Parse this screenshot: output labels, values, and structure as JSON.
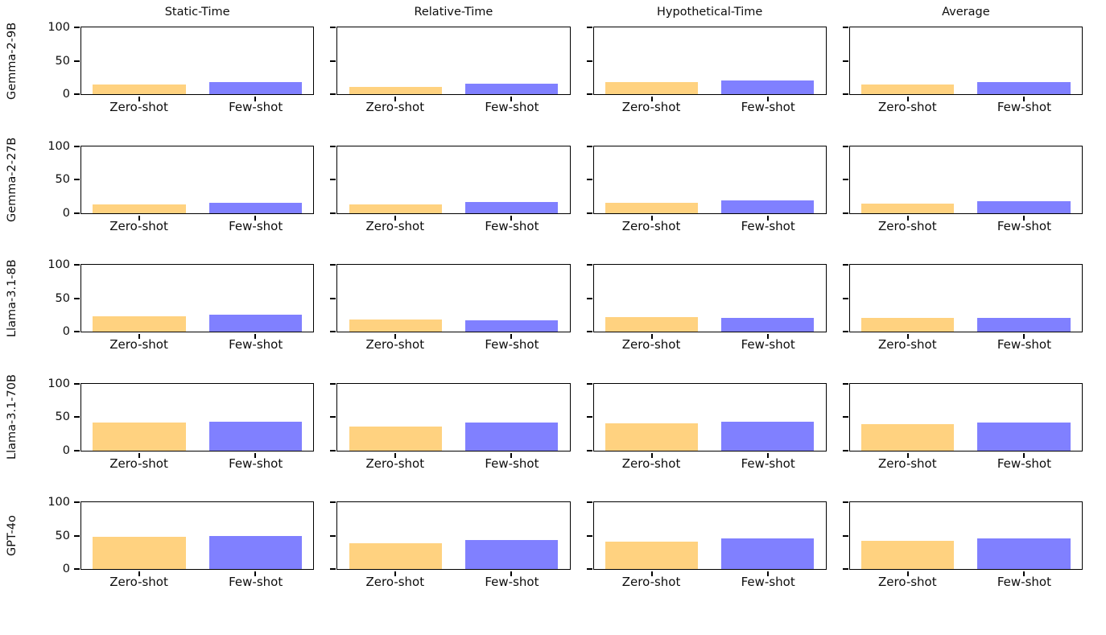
{
  "chart_data": {
    "type": "bar",
    "layout": "grid of 5 model rows x 4 metric columns, two bars per subplot",
    "col_titles": [
      "Static-Time",
      "Relative-Time",
      "Hypothetical-Time",
      "Average"
    ],
    "row_labels": [
      "Gemma-2-9B",
      "Gemma-2-27B",
      "Llama-3.1-8B",
      "Llama-3.1-70B",
      "GPT-4o"
    ],
    "categories": [
      "Zero-shot",
      "Few-shot"
    ],
    "series_colors": [
      "#FFD280",
      "#8080FF"
    ],
    "ylim": [
      0,
      100
    ],
    "yticks": [
      "0",
      "50",
      "100"
    ],
    "grid": false,
    "legend": "none",
    "values": [
      {
        "model": "Gemma-2-9B",
        "cells": [
          [
            15,
            18
          ],
          [
            11,
            16
          ],
          [
            18,
            21
          ],
          [
            15,
            18
          ]
        ]
      },
      {
        "model": "Gemma-2-27B",
        "cells": [
          [
            13,
            15
          ],
          [
            13,
            16
          ],
          [
            15,
            19
          ],
          [
            14,
            17
          ]
        ]
      },
      {
        "model": "Llama-3.1-8B",
        "cells": [
          [
            23,
            25
          ],
          [
            18,
            17
          ],
          [
            22,
            20
          ],
          [
            21,
            20
          ]
        ]
      },
      {
        "model": "Llama-3.1-70B",
        "cells": [
          [
            42,
            43
          ],
          [
            36,
            41
          ],
          [
            40,
            43
          ],
          [
            39,
            42
          ]
        ]
      },
      {
        "model": "GPT-4o",
        "cells": [
          [
            48,
            50
          ],
          [
            38,
            43
          ],
          [
            41,
            46
          ],
          [
            42,
            46
          ]
        ]
      }
    ]
  }
}
